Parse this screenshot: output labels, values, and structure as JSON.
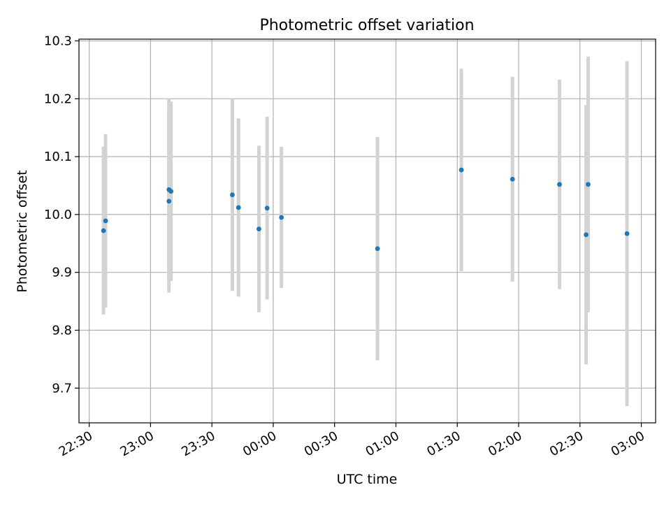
{
  "chart_data": {
    "type": "scatter",
    "title": "Photometric offset variation",
    "xlabel": "UTC time",
    "ylabel": "Photometric offset",
    "x_axis_type": "time",
    "xlim": [
      "22:25",
      "03:07"
    ],
    "ylim": [
      9.64,
      10.303
    ],
    "x_ticks": [
      "22:30",
      "23:00",
      "23:30",
      "00:00",
      "00:30",
      "01:00",
      "01:30",
      "02:00",
      "02:30",
      "03:00"
    ],
    "y_ticks": [
      "9.7",
      "9.8",
      "9.9",
      "10.0",
      "10.1",
      "10.2",
      "10.3"
    ],
    "grid": true,
    "marker_color": "#1f77b4",
    "errorbar_color": "#d3d3d3",
    "series": [
      {
        "points": [
          {
            "time": "22:37",
            "y": 9.972,
            "err": 0.145
          },
          {
            "time": "22:38",
            "y": 9.989,
            "err": 0.15
          },
          {
            "time": "23:09",
            "y": 10.023,
            "err": 0.158
          },
          {
            "time": "23:09",
            "y": 10.043,
            "err": 0.157
          },
          {
            "time": "23:10",
            "y": 10.04,
            "err": 0.155
          },
          {
            "time": "23:40",
            "y": 10.034,
            "err": 0.166
          },
          {
            "time": "23:43",
            "y": 10.012,
            "err": 0.154
          },
          {
            "time": "23:53",
            "y": 9.975,
            "err": 0.144
          },
          {
            "time": "23:57",
            "y": 10.011,
            "err": 0.158
          },
          {
            "time": "00:04",
            "y": 9.995,
            "err": 0.122
          },
          {
            "time": "00:51",
            "y": 9.941,
            "err": 0.193
          },
          {
            "time": "01:32",
            "y": 10.077,
            "err": 0.175
          },
          {
            "time": "01:57",
            "y": 10.061,
            "err": 0.177
          },
          {
            "time": "02:20",
            "y": 10.052,
            "err": 0.181
          },
          {
            "time": "02:33",
            "y": 9.965,
            "err": 0.224
          },
          {
            "time": "02:34",
            "y": 10.052,
            "err": 0.221
          },
          {
            "time": "02:53",
            "y": 9.967,
            "err": 0.298
          }
        ]
      }
    ]
  }
}
